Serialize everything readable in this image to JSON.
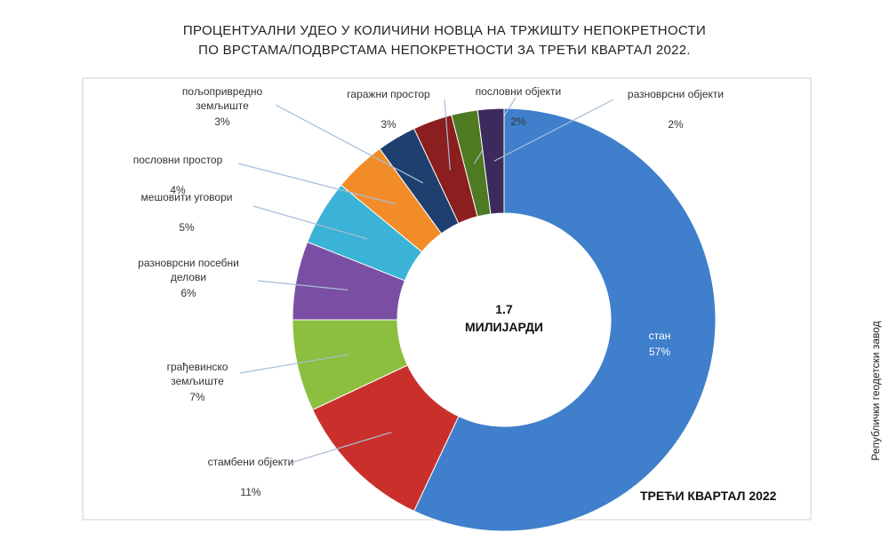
{
  "chart_data": {
    "type": "donut",
    "title": [
      "ПРОЦЕНТУАЛНИ УДЕО У КОЛИЧИНИ НОВЦА НА ТРЖИШТУ НЕПОКРЕТНОСТИ",
      "ПО ВРСТАМА/ПОДВРСТАМА НЕПОКРЕТНОСТИ ЗА ТРЕЋИ КВАРТАЛ 2022."
    ],
    "center_value": "1.7",
    "center_label": "МИЛИЈАРДИ",
    "corner_note": "ТРЕЋИ КВАРТАЛ 2022",
    "source": "Републички геодетски завод",
    "categories": [
      "стан",
      "стамбени објекти",
      "грађевинско земљиште",
      "разноврсни посебни делови",
      "мешовити уговори",
      "пословни простор",
      "пољопривредно земљиште",
      "гаражни простор",
      "пословни објекти",
      "разноврсни објекти"
    ],
    "values": [
      57,
      11,
      7,
      6,
      5,
      4,
      3,
      3,
      2,
      2
    ],
    "value_labels": [
      "57%",
      "11%",
      "7%",
      "6%",
      "5%",
      "4%",
      "3%",
      "3%",
      "2%",
      "2%"
    ],
    "colors": [
      "#3f7fcb",
      "#c9302c",
      "#8cbf3f",
      "#7a4fa3",
      "#3bb3d6",
      "#f28c28",
      "#1f3f6e",
      "#8b1e1e",
      "#4e7a22",
      "#3d2a5c"
    ]
  }
}
